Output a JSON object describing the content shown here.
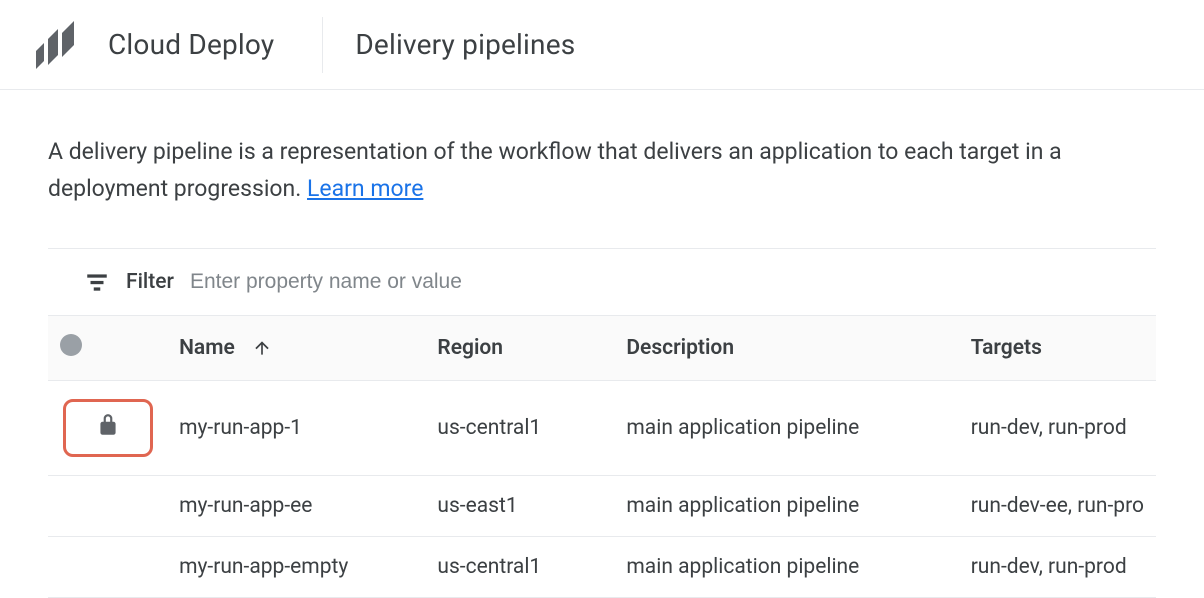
{
  "header": {
    "product": "Cloud Deploy",
    "page_title": "Delivery pipelines"
  },
  "intro": {
    "text_before": "A delivery pipeline is a representation of the workflow that delivers an application to each target in a deployment progression. ",
    "learn_more": "Learn more"
  },
  "filter": {
    "label": "Filter",
    "placeholder": "Enter property name or value"
  },
  "table": {
    "columns": {
      "name": "Name",
      "region": "Region",
      "description": "Description",
      "targets": "Targets"
    },
    "sort": {
      "column": "name",
      "direction": "asc"
    },
    "rows": [
      {
        "locked": true,
        "name": "my-run-app-1",
        "region": "us-central1",
        "description": "main application pipeline",
        "targets": "run-dev, run-prod"
      },
      {
        "locked": false,
        "name": "my-run-app-ee",
        "region": "us-east1",
        "description": "main application pipeline",
        "targets": "run-dev-ee, run-pro"
      },
      {
        "locked": false,
        "name": "my-run-app-empty",
        "region": "us-central1",
        "description": "main application pipeline",
        "targets": "run-dev, run-prod"
      }
    ]
  },
  "colors": {
    "link": "#1a73e8",
    "muted_text": "#5f6368",
    "border": "#e8eaed",
    "highlight_border": "#e06651",
    "status_dot": "#9aa0a6",
    "icon": "#5f6368",
    "text": "#3c4043"
  }
}
